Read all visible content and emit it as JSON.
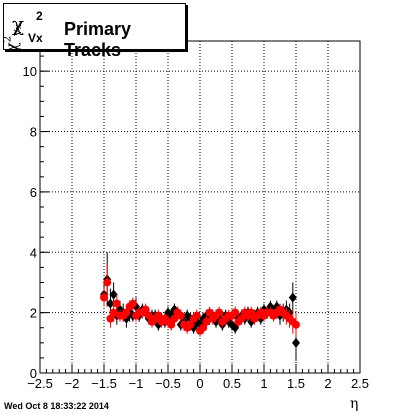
{
  "title": {
    "symbol": "χ",
    "superscript": "2",
    "subscript": "Vx",
    "text": "Primary Tracks"
  },
  "axis_labels": {
    "y_symbol": "χ",
    "y_superscript": "2",
    "y_subscript": "Vx",
    "x": "η"
  },
  "timestamp": "Wed Oct  8 18:33:22 2014",
  "colors": {
    "series_black": "#000000",
    "series_red": "#ff0000",
    "grid": "#000000"
  },
  "chart_data": {
    "type": "scatter",
    "title": "χ²Vx  Primary Tracks",
    "xlabel": "η",
    "ylabel": "χ²Vx",
    "xlim": [
      -2.5,
      2.5
    ],
    "ylim": [
      0,
      11
    ],
    "x_ticks": [
      "−2.5",
      "−2",
      "−1.5",
      "−1",
      "−0.5",
      "0",
      "0.5",
      "1",
      "1.5",
      "2",
      "2.5"
    ],
    "y_ticks": [
      "0",
      "2",
      "4",
      "6",
      "8",
      "10"
    ],
    "grid": true,
    "series": [
      {
        "color": "#000000",
        "marker": "diamond",
        "x": [
          -1.5,
          -1.45,
          -1.4,
          -1.35,
          -1.3,
          -1.25,
          -1.2,
          -1.15,
          -1.1,
          -1.05,
          -1.0,
          -0.95,
          -0.9,
          -0.85,
          -0.8,
          -0.75,
          -0.7,
          -0.65,
          -0.6,
          -0.55,
          -0.5,
          -0.45,
          -0.4,
          -0.35,
          -0.3,
          -0.25,
          -0.2,
          -0.15,
          -0.1,
          -0.05,
          0.0,
          0.05,
          0.1,
          0.15,
          0.2,
          0.25,
          0.3,
          0.35,
          0.4,
          0.45,
          0.5,
          0.55,
          0.6,
          0.65,
          0.7,
          0.75,
          0.8,
          0.85,
          0.9,
          0.95,
          1.0,
          1.05,
          1.1,
          1.15,
          1.2,
          1.25,
          1.3,
          1.35,
          1.4,
          1.45,
          1.5
        ],
        "y": [
          2.6,
          3.1,
          2.3,
          2.6,
          1.9,
          2.1,
          2.0,
          1.8,
          2.0,
          1.9,
          2.2,
          1.9,
          2.1,
          2.0,
          1.8,
          1.9,
          1.9,
          1.6,
          1.8,
          1.7,
          2.0,
          1.9,
          2.1,
          2.0,
          1.6,
          1.7,
          1.9,
          1.8,
          1.5,
          1.7,
          1.6,
          1.8,
          1.9,
          1.8,
          1.9,
          1.7,
          1.8,
          1.6,
          1.9,
          1.7,
          1.6,
          1.5,
          1.8,
          1.9,
          1.8,
          2.0,
          1.7,
          1.9,
          2.0,
          1.8,
          2.1,
          2.0,
          2.2,
          2.0,
          2.2,
          1.9,
          2.0,
          2.1,
          2.0,
          2.5,
          1.0
        ],
        "err": [
          0.4,
          0.9,
          0.5,
          0.4,
          0.3,
          0.3,
          0.3,
          0.3,
          0.3,
          0.2,
          0.3,
          0.2,
          0.2,
          0.2,
          0.2,
          0.2,
          0.2,
          0.2,
          0.2,
          0.2,
          0.2,
          0.2,
          0.2,
          0.2,
          0.2,
          0.2,
          0.2,
          0.2,
          0.2,
          0.2,
          0.2,
          0.2,
          0.2,
          0.2,
          0.2,
          0.2,
          0.2,
          0.2,
          0.2,
          0.2,
          0.2,
          0.2,
          0.2,
          0.2,
          0.2,
          0.2,
          0.2,
          0.2,
          0.2,
          0.2,
          0.2,
          0.2,
          0.2,
          0.2,
          0.2,
          0.3,
          0.3,
          0.3,
          0.3,
          0.5,
          0.6
        ]
      },
      {
        "color": "#ff0000",
        "marker": "circle",
        "x": [
          -1.5,
          -1.45,
          -1.4,
          -1.35,
          -1.3,
          -1.25,
          -1.2,
          -1.15,
          -1.1,
          -1.05,
          -1.0,
          -0.95,
          -0.9,
          -0.85,
          -0.8,
          -0.75,
          -0.7,
          -0.65,
          -0.6,
          -0.55,
          -0.5,
          -0.45,
          -0.4,
          -0.35,
          -0.3,
          -0.25,
          -0.2,
          -0.15,
          -0.1,
          -0.05,
          0.0,
          0.05,
          0.1,
          0.15,
          0.2,
          0.25,
          0.3,
          0.35,
          0.4,
          0.45,
          0.5,
          0.55,
          0.6,
          0.65,
          0.7,
          0.75,
          0.8,
          0.85,
          0.9,
          0.95,
          1.0,
          1.05,
          1.1,
          1.15,
          1.2,
          1.25,
          1.3,
          1.35,
          1.4,
          1.45,
          1.5
        ],
        "y": [
          2.5,
          3.0,
          1.8,
          2.0,
          2.3,
          1.9,
          1.9,
          2.0,
          2.2,
          2.3,
          1.9,
          2.0,
          2.0,
          2.1,
          1.9,
          1.7,
          1.8,
          1.9,
          1.7,
          1.8,
          1.7,
          1.6,
          1.8,
          2.0,
          1.9,
          1.6,
          1.5,
          1.6,
          1.8,
          1.9,
          1.4,
          1.5,
          1.7,
          2.0,
          1.8,
          1.9,
          2.0,
          1.7,
          1.8,
          1.9,
          1.9,
          2.0,
          1.7,
          1.8,
          2.0,
          1.9,
          2.0,
          1.8,
          1.9,
          2.0,
          1.9,
          2.0,
          2.0,
          1.9,
          2.0,
          2.1,
          2.0,
          1.9,
          1.8,
          1.7,
          1.6
        ],
        "err": [
          0.3,
          0.6,
          0.3,
          0.3,
          0.3,
          0.2,
          0.2,
          0.2,
          0.2,
          0.2,
          0.2,
          0.2,
          0.2,
          0.2,
          0.2,
          0.2,
          0.2,
          0.2,
          0.2,
          0.2,
          0.2,
          0.2,
          0.2,
          0.2,
          0.2,
          0.2,
          0.2,
          0.2,
          0.2,
          0.2,
          0.2,
          0.2,
          0.2,
          0.2,
          0.2,
          0.2,
          0.2,
          0.2,
          0.2,
          0.2,
          0.2,
          0.2,
          0.2,
          0.2,
          0.2,
          0.2,
          0.2,
          0.2,
          0.2,
          0.2,
          0.2,
          0.2,
          0.2,
          0.2,
          0.2,
          0.2,
          0.2,
          0.3,
          0.3,
          0.4,
          0.4
        ]
      }
    ]
  }
}
